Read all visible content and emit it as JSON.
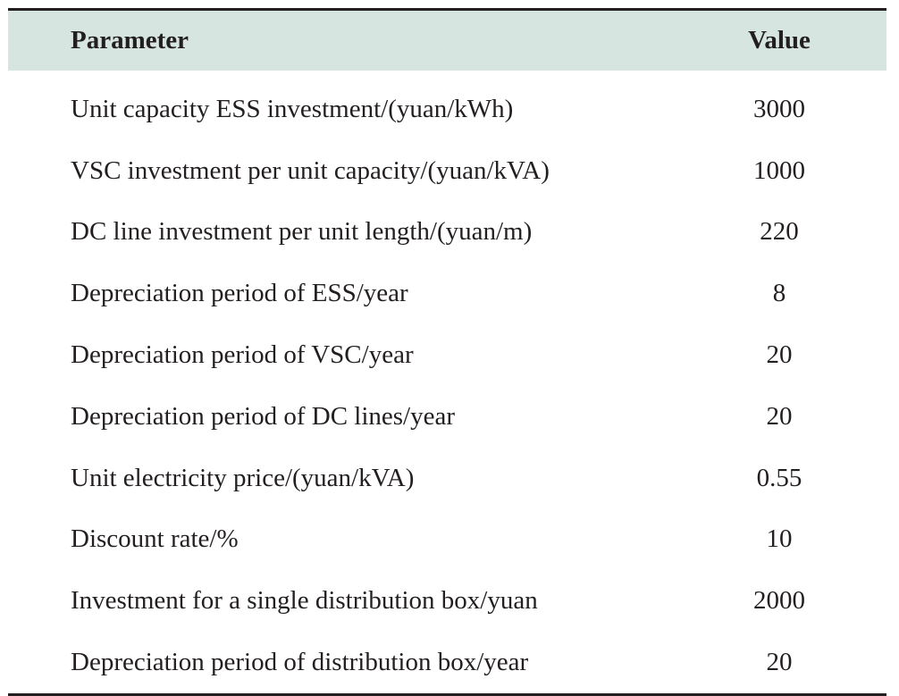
{
  "table": {
    "headers": {
      "parameter": "Parameter",
      "value": "Value"
    },
    "rows": [
      {
        "parameter": "Unit capacity ESS investment/(yuan/kWh)",
        "value": "3000"
      },
      {
        "parameter": "VSC investment per unit capacity/(yuan/kVA)",
        "value": "1000"
      },
      {
        "parameter": "DC line investment per unit length/(yuan/m)",
        "value": "220"
      },
      {
        "parameter": "Depreciation period of ESS/year",
        "value": "8"
      },
      {
        "parameter": "Depreciation period of VSC/year",
        "value": "20"
      },
      {
        "parameter": "Depreciation period of DC lines/year",
        "value": "20"
      },
      {
        "parameter": "Unit electricity price/(yuan/kVA)",
        "value": "0.55"
      },
      {
        "parameter": "Discount rate/%",
        "value": "10"
      },
      {
        "parameter": "Investment for a single distribution box/yuan",
        "value": "2000"
      },
      {
        "parameter": "Depreciation period of distribution box/year",
        "value": "20"
      }
    ]
  },
  "colors": {
    "header_background": "#d7e5e1",
    "text": "#231f20",
    "rule": "#231f20"
  }
}
